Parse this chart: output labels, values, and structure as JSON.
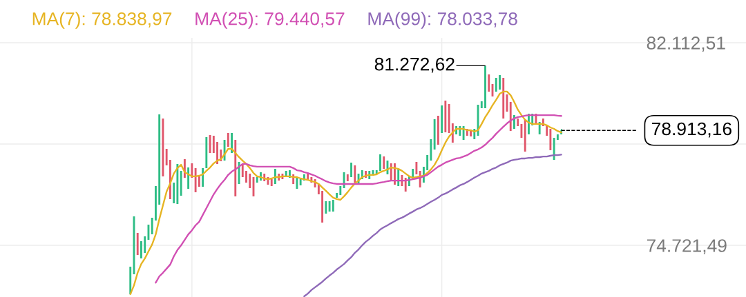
{
  "chart_data": {
    "type": "candlestick",
    "categories": [
      null,
      null,
      null,
      null,
      null,
      null,
      null,
      null,
      null,
      null,
      null,
      null,
      null,
      null,
      null,
      null,
      null,
      null,
      null,
      null,
      null,
      null,
      null,
      null,
      null,
      null,
      null,
      null,
      null,
      null,
      null,
      null,
      null,
      null,
      null,
      null,
      null,
      null,
      null,
      null,
      null,
      null,
      null,
      null,
      null,
      null,
      null,
      null,
      null,
      null,
      null,
      null,
      null,
      null,
      null,
      null,
      null,
      null,
      null,
      null,
      null,
      null,
      null,
      null,
      null,
      null,
      null,
      null,
      null,
      null,
      null,
      null,
      null,
      null,
      null,
      null,
      null,
      null,
      null,
      null,
      null,
      null,
      null,
      null,
      null,
      null,
      null,
      null,
      null,
      null,
      null,
      null,
      null,
      null,
      null,
      null,
      null,
      null,
      null,
      null,
      null,
      null,
      null,
      null,
      null,
      null,
      null,
      null,
      null,
      null,
      null,
      null,
      null,
      null,
      null,
      null,
      null,
      null,
      null,
      null,
      null,
      null,
      null,
      null,
      null,
      null,
      null,
      null
    ],
    "ohlc": [
      null,
      null,
      null,
      null,
      null,
      null,
      null,
      null,
      [
        72936,
        73942,
        72936,
        73942
      ],
      [
        73665,
        75777,
        73665,
        75777
      ],
      [
        75174,
        75174,
        74369,
        74369
      ],
      [
        74243,
        74872,
        74243,
        74872
      ],
      [
        74445,
        75048,
        74445,
        75048
      ],
      [
        74922,
        75475,
        74922,
        75475
      ],
      [
        75123,
        75727,
        75123,
        75727
      ],
      [
        75626,
        76883,
        75626,
        76883
      ],
      [
        76204,
        79498,
        76204,
        79498
      ],
      [
        79347,
        79347,
        77235,
        77235
      ],
      [
        78241,
        78241,
        77637,
        77637
      ],
      [
        77838,
        77838,
        76405,
        76405
      ],
      [
        76255,
        77009,
        76255,
        77009
      ],
      [
        76230,
        77688,
        76230,
        77688
      ],
      [
        76531,
        77436,
        76531,
        77436
      ],
      [
        77864,
        77864,
        77185,
        77185
      ],
      [
        76783,
        77562,
        76783,
        77562
      ],
      [
        77713,
        77713,
        77185,
        77185
      ],
      [
        77537,
        77537,
        76657,
        76657
      ],
      [
        77235,
        77235,
        76858,
        76858
      ],
      [
        76858,
        77537,
        76858,
        77537
      ],
      [
        77537,
        78668,
        77537,
        78668
      ],
      [
        78744,
        78744,
        78090,
        78090
      ],
      [
        78718,
        78718,
        78090,
        78090
      ],
      [
        78492,
        78492,
        77688,
        77688
      ],
      [
        78216,
        78216,
        77788,
        77788
      ],
      [
        77813,
        78568,
        77813,
        78568
      ],
      [
        78819,
        78819,
        78316,
        78316
      ],
      [
        78090,
        78819,
        78090,
        78819
      ],
      [
        78568,
        78568,
        76506,
        76506
      ],
      [
        76959,
        77763,
        76959,
        77763
      ],
      [
        77688,
        77688,
        77210,
        77210
      ],
      [
        77436,
        77436,
        77009,
        77009
      ],
      [
        77336,
        77336,
        76808,
        76808
      ],
      [
        77210,
        77210,
        76506,
        76506
      ],
      [
        77009,
        77210,
        77009,
        77210
      ],
      [
        77084,
        77386,
        77084,
        77386
      ],
      [
        77336,
        77336,
        77059,
        77059
      ],
      [
        77210,
        77210,
        76934,
        76934
      ],
      [
        77135,
        77135,
        76883,
        76883
      ],
      [
        76959,
        77512,
        76959,
        77512
      ],
      [
        77336,
        77336,
        77084,
        77084
      ],
      [
        77336,
        77336,
        77135,
        77135
      ],
      [
        77210,
        77436,
        77210,
        77436
      ],
      [
        77185,
        77461,
        77185,
        77461
      ],
      [
        77311,
        77311,
        76959,
        76959
      ],
      [
        76783,
        77185,
        76783,
        77185
      ],
      [
        76908,
        77135,
        76908,
        77135
      ],
      [
        77084,
        77311,
        77084,
        77311
      ],
      [
        77336,
        77336,
        77084,
        77084
      ],
      [
        77210,
        77210,
        77009,
        77009
      ],
      [
        77135,
        77135,
        76833,
        76833
      ],
      [
        76959,
        76959,
        76582,
        76582
      ],
      [
        76707,
        76707,
        75551,
        75551
      ],
      [
        75878,
        76330,
        75878,
        76330
      ],
      [
        75953,
        76330,
        75953,
        76330
      ],
      [
        75953,
        76380,
        75953,
        76380
      ],
      [
        76456,
        76632,
        76456,
        76632
      ],
      [
        76556,
        76883,
        76556,
        76883
      ],
      [
        76808,
        77386,
        76808,
        77386
      ],
      [
        77311,
        77311,
        77059,
        77059
      ],
      [
        77210,
        77738,
        77210,
        77738
      ],
      [
        77637,
        77637,
        77009,
        77009
      ],
      [
        76959,
        77336,
        76959,
        77336
      ],
      [
        77135,
        77461,
        77135,
        77461
      ],
      [
        77436,
        77436,
        77185,
        77185
      ],
      [
        77135,
        77436,
        77135,
        77436
      ],
      [
        77260,
        77461,
        77260,
        77461
      ],
      [
        77311,
        77461,
        77311,
        77461
      ],
      [
        77436,
        78040,
        77436,
        78040
      ],
      [
        77964,
        77964,
        77512,
        77512
      ],
      [
        77311,
        77813,
        77311,
        77813
      ],
      [
        77713,
        77713,
        77084,
        77084
      ],
      [
        77713,
        77713,
        76934,
        76934
      ],
      [
        76883,
        77512,
        76883,
        77512
      ],
      [
        77285,
        77285,
        76883,
        76883
      ],
      [
        77185,
        77185,
        76682,
        76682
      ],
      [
        76883,
        77260,
        76883,
        77260
      ],
      [
        77135,
        77512,
        77135,
        77512
      ],
      [
        77763,
        77763,
        77311,
        77311
      ],
      [
        77436,
        77436,
        76833,
        76833
      ],
      [
        77009,
        77587,
        77009,
        77587
      ],
      [
        77461,
        78015,
        77461,
        78015
      ],
      [
        77813,
        78593,
        77813,
        78593
      ],
      [
        78216,
        79322,
        78216,
        79322
      ],
      [
        79448,
        79448,
        78392,
        78392
      ],
      [
        78819,
        79825,
        78819,
        79825
      ],
      [
        80001,
        80001,
        78844,
        78844
      ],
      [
        79875,
        79875,
        78819,
        78819
      ],
      [
        79171,
        79171,
        78467,
        78467
      ],
      [
        78769,
        79070,
        78769,
        79070
      ],
      [
        78718,
        79070,
        78718,
        79070
      ],
      [
        78568,
        79070,
        78568,
        79070
      ],
      [
        78970,
        78970,
        78718,
        78718
      ],
      [
        78945,
        78945,
        78693,
        78693
      ],
      [
        78593,
        78970,
        78593,
        78970
      ],
      [
        78718,
        79850,
        78718,
        79850
      ],
      [
        79724,
        79975,
        79724,
        79975
      ],
      [
        79724,
        81272.62,
        79724,
        81272.62
      ],
      [
        80956,
        80956,
        80327,
        80327
      ],
      [
        80604,
        80604,
        80151,
        80151
      ],
      [
        80327,
        80830,
        80327,
        80830
      ],
      [
        80403,
        80931,
        80403,
        80931
      ],
      [
        80830,
        80830,
        79347,
        79347
      ],
      [
        80227,
        80227,
        79598,
        79598
      ],
      [
        79950,
        79950,
        78894,
        78894
      ],
      [
        78970,
        79473,
        78970,
        79473
      ],
      [
        79347,
        79347,
        79070,
        79070
      ],
      [
        79146,
        79146,
        78643,
        78643
      ],
      [
        79322,
        79322,
        78140,
        78140
      ],
      [
        78769,
        79523,
        78769,
        79523
      ],
      [
        79095,
        79523,
        79095,
        79523
      ],
      [
        79523,
        79523,
        79146,
        79146
      ],
      [
        78769,
        79221,
        78769,
        79221
      ],
      [
        79347,
        79347,
        79070,
        79070
      ],
      [
        79095,
        79095,
        78718,
        78718
      ],
      [
        78970,
        78970,
        78190,
        78190
      ],
      [
        77838,
        78643,
        77838,
        78643
      ],
      [
        78568,
        78769,
        78568,
        78769
      ],
      [
        78769,
        78970,
        78769,
        78913.16
      ]
    ],
    "colors": [
      null,
      null,
      null,
      null,
      null,
      null,
      null,
      null,
      "#2ebd85",
      "#2ebd85",
      "#e0566b",
      "#2ebd85",
      "#2ebd85",
      "#2ebd85",
      "#2ebd85",
      "#2ebd85",
      "#2ebd85",
      "#e0566b",
      "#e0566b",
      "#e0566b",
      "#2ebd85",
      "#2ebd85",
      "#2ebd85",
      "#e0566b",
      "#2ebd85",
      "#e0566b",
      "#e0566b",
      "#e0566b",
      "#2ebd85",
      "#2ebd85",
      "#e0566b",
      "#e0566b",
      "#e0566b",
      "#e0566b",
      "#2ebd85",
      "#e0566b",
      "#2ebd85",
      "#e0566b",
      "#2ebd85",
      "#e0566b",
      "#e0566b",
      "#e0566b",
      "#e0566b",
      "#2ebd85",
      "#2ebd85",
      "#e0566b",
      "#e0566b",
      "#e0566b",
      "#2ebd85",
      "#e0566b",
      "#e0566b",
      "#2ebd85",
      "#2ebd85",
      "#e0566b",
      "#2ebd85",
      "#2ebd85",
      "#2ebd85",
      "#e0566b",
      "#e0566b",
      "#e0566b",
      "#e0566b",
      "#e0566b",
      "#2ebd85",
      "#2ebd85",
      "#2ebd85",
      "#2ebd85",
      "#2ebd85",
      "#2ebd85",
      "#e0566b",
      "#2ebd85",
      "#e0566b",
      "#2ebd85",
      "#2ebd85",
      "#e0566b",
      "#2ebd85",
      "#2ebd85",
      "#2ebd85",
      "#2ebd85",
      "#e0566b",
      "#2ebd85",
      "#e0566b",
      "#e0566b",
      "#2ebd85",
      "#e0566b",
      "#e0566b",
      "#2ebd85",
      "#2ebd85",
      "#e0566b",
      "#e0566b",
      "#2ebd85",
      "#2ebd85",
      "#2ebd85",
      "#2ebd85",
      "#e0566b",
      "#2ebd85",
      "#e0566b",
      "#e0566b",
      "#e0566b",
      "#2ebd85",
      "#2ebd85",
      "#2ebd85",
      "#e0566b",
      "#e0566b",
      "#2ebd85",
      "#2ebd85",
      "#2ebd85",
      "#2ebd85",
      "#e0566b",
      "#e0566b",
      "#2ebd85",
      "#2ebd85",
      "#e0566b",
      "#e0566b",
      "#e0566b",
      "#2ebd85",
      "#e0566b",
      "#e0566b",
      "#e0566b",
      "#2ebd85",
      "#2ebd85",
      "#e0566b",
      "#2ebd85",
      "#e0566b",
      "#e0566b",
      "#e0566b",
      "#2ebd85",
      "#2ebd85",
      "#2ebd85"
    ],
    "series": [
      {
        "name": "MA(7): 78.838,97",
        "type": "line",
        "color": "#e6b422",
        "values": [
          null,
          null,
          null,
          null,
          null,
          null,
          null,
          null,
          72940,
          73260,
          73720,
          74040,
          74240,
          74500,
          74750,
          75120,
          75680,
          76180,
          76680,
          76980,
          77340,
          77540,
          77660,
          77390,
          77310,
          77240,
          77240,
          77260,
          77310,
          77440,
          77560,
          77710,
          77810,
          77860,
          78040,
          78240,
          78240,
          78090,
          77940,
          77810,
          77690,
          77540,
          77360,
          77240,
          77210,
          77160,
          77130,
          77160,
          77210,
          77210,
          77240,
          77240,
          77240,
          77210,
          77210,
          77160,
          77130,
          77110,
          77060,
          77030,
          76960,
          76830,
          76710,
          76580,
          76460,
          76410,
          76380,
          76510,
          76660,
          76830,
          76980,
          77080,
          77210,
          77260,
          77290,
          77290,
          77310,
          77390,
          77440,
          77490,
          77560,
          77540,
          77510,
          77440,
          77340,
          77240,
          77190,
          77210,
          77240,
          77260,
          77360,
          77490,
          77660,
          77890,
          78190,
          78470,
          78690,
          78840,
          78970,
          78970,
          78970,
          78920,
          78920,
          78870,
          78920,
          79150,
          79400,
          79600,
          79830,
          80030,
          80250,
          80330,
          80330,
          80200,
          79950,
          79670,
          79470,
          79300,
          79200,
          79150,
          79150,
          79150,
          79150,
          79100,
          79020,
          78970,
          78890,
          78840
        ]
      },
      {
        "name": "MA(25): 79.440,57",
        "type": "line",
        "color": "#d14fb3",
        "values": [
          null,
          null,
          null,
          null,
          null,
          null,
          null,
          null,
          null,
          null,
          null,
          null,
          null,
          null,
          null,
          73360,
          73590,
          73720,
          73870,
          74020,
          74320,
          74550,
          74720,
          74920,
          75120,
          75270,
          75450,
          75580,
          75830,
          76080,
          76330,
          76580,
          76780,
          76960,
          77110,
          77290,
          77410,
          77490,
          77590,
          77690,
          77690,
          77640,
          77610,
          77590,
          77590,
          77590,
          77590,
          77590,
          77590,
          77590,
          77590,
          77590,
          77590,
          77540,
          77460,
          77440,
          77390,
          77360,
          77310,
          77260,
          77190,
          77130,
          77060,
          77010,
          76980,
          76960,
          76960,
          76960,
          76960,
          76960,
          76960,
          76960,
          76960,
          76960,
          76960,
          76960,
          76980,
          77010,
          77030,
          77060,
          77080,
          77080,
          77080,
          77080,
          77080,
          77110,
          77130,
          77160,
          77190,
          77240,
          77290,
          77390,
          77490,
          77590,
          77660,
          77740,
          77790,
          77840,
          77890,
          77910,
          77960,
          78010,
          78090,
          78170,
          78220,
          78290,
          78390,
          78520,
          78640,
          78790,
          78920,
          79050,
          79170,
          79270,
          79350,
          79400,
          79420,
          79450,
          79470,
          79470,
          79470,
          79470,
          79470,
          79470,
          79470,
          79470,
          79450,
          79440
        ]
      },
      {
        "name": "MA(99): 78.033,78",
        "type": "line",
        "color": "#8e69b8",
        "values": [
          null,
          null,
          null,
          null,
          null,
          null,
          null,
          null,
          null,
          null,
          null,
          null,
          null,
          null,
          null,
          null,
          null,
          null,
          null,
          null,
          null,
          null,
          null,
          null,
          null,
          null,
          null,
          null,
          null,
          null,
          null,
          null,
          null,
          null,
          null,
          null,
          null,
          null,
          null,
          null,
          null,
          null,
          null,
          null,
          null,
          null,
          null,
          null,
          null,
          null,
          null,
          null,
          null,
          null,
          null,
          null,
          72860,
          72960,
          73090,
          73190,
          73290,
          73390,
          73510,
          73620,
          73720,
          73840,
          73940,
          74040,
          74170,
          74290,
          74450,
          74570,
          74720,
          74850,
          74950,
          75070,
          75170,
          75300,
          75380,
          75450,
          75530,
          75600,
          75680,
          75730,
          75800,
          75880,
          75950,
          76030,
          76080,
          76150,
          76230,
          76310,
          76380,
          76460,
          76560,
          76610,
          76680,
          76760,
          76830,
          76910,
          76960,
          77030,
          77110,
          77190,
          77260,
          77340,
          77390,
          77440,
          77510,
          77560,
          77640,
          77690,
          77740,
          77810,
          77840,
          77860,
          77890,
          77890,
          77910,
          77910,
          77940,
          77940,
          77960,
          77960,
          77990,
          78010,
          78010,
          78030
        ]
      }
    ],
    "ylim": [
      72836,
      82288
    ],
    "yticks": [
      {
        "value": 82112.51,
        "label": "82.112,51"
      },
      {
        "value": 78417.0,
        "label": null
      },
      {
        "value": 74721.49,
        "label": "74.721,49"
      }
    ],
    "tick_labels": "y",
    "grid": true,
    "legend": "top",
    "annotations": [
      "81.272,62"
    ],
    "ref_lines": [
      {
        "axis": "y",
        "value": 78913.16,
        "label": "78.913,16",
        "color": "#000000",
        "line_style": "dashed"
      }
    ]
  }
}
